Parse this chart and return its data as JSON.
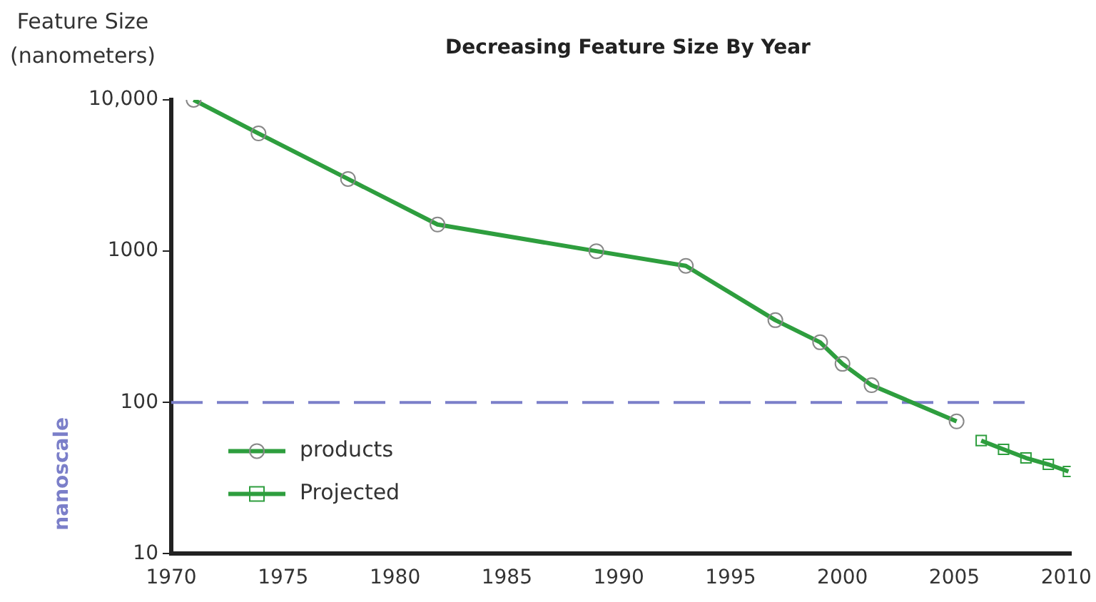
{
  "chart_data": {
    "type": "line",
    "title": "Decreasing Feature Size By Year",
    "ylabel": "Feature Size (nanometers)",
    "log": "y",
    "xlim": [
      1970,
      2010.2
    ],
    "xticks": [
      1970,
      1975,
      1980,
      1985,
      1990,
      1995,
      2000,
      2005,
      2010
    ],
    "ylim": [
      10,
      10000
    ],
    "yticks": [
      10,
      100,
      1000,
      {
        "value": 10000,
        "label": "10,000"
      }
    ],
    "grid": false,
    "legend": "bottom left",
    "line_style": "solid",
    "series": [
      {
        "name": "products",
        "color": "#2e9e3e",
        "marker": "circle",
        "x": [
          1971,
          1973.9,
          1977.9,
          1981.9,
          1989,
          1993,
          1997,
          1999,
          2000,
          2001.3,
          2005.1
        ],
        "values": [
          10000,
          6000,
          3000,
          1500,
          1000,
          800,
          350,
          250,
          180,
          130,
          75
        ]
      },
      {
        "name": "Projected",
        "color": "#2e9e3e",
        "marker": "square",
        "x": [
          2006.2,
          2007.2,
          2008.2,
          2009.2,
          2010.1
        ],
        "values": [
          56,
          49,
          43,
          39,
          35
        ]
      }
    ],
    "ref_lines": [
      {
        "axis": "y",
        "value": 100,
        "label": "nanoscale",
        "color": "#7b7fc9",
        "line_style": "dashed"
      }
    ]
  }
}
